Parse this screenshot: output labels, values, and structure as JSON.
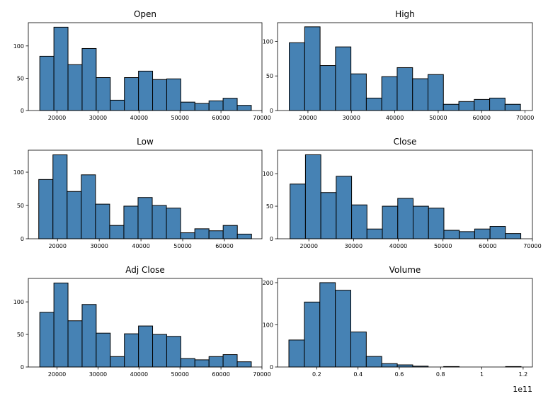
{
  "chart_data": [
    {
      "type": "histogram",
      "title": "Open",
      "color": "#4682b4",
      "bins": [
        15800,
        19240,
        22680,
        26120,
        29560,
        33000,
        36440,
        39880,
        43320,
        46760,
        50200,
        53640,
        57080,
        60520,
        63960,
        67400
      ],
      "counts": [
        84,
        129,
        71,
        96,
        51,
        16,
        51,
        61,
        48,
        49,
        13,
        11,
        15,
        19,
        8
      ],
      "xlim": [
        13000,
        70000
      ],
      "xticks": [
        20000,
        30000,
        40000,
        50000,
        60000,
        70000
      ],
      "ylim": [
        0,
        136
      ],
      "yticks": [
        0,
        50,
        100
      ]
    },
    {
      "type": "histogram",
      "title": "High",
      "color": "#4682b4",
      "bins": [
        15700,
        19250,
        22800,
        26350,
        29900,
        33450,
        37000,
        40550,
        44100,
        47650,
        51200,
        54750,
        58300,
        61850,
        65400,
        68950
      ],
      "counts": [
        98,
        121,
        65,
        92,
        53,
        18,
        49,
        62,
        46,
        52,
        9,
        13,
        16,
        18,
        9
      ],
      "xlim": [
        13000,
        71700
      ],
      "xticks": [
        20000,
        30000,
        40000,
        50000,
        60000,
        70000
      ],
      "ylim": [
        0,
        127
      ],
      "yticks": [
        0,
        50,
        100
      ]
    },
    {
      "type": "histogram",
      "title": "Low",
      "color": "#4682b4",
      "bins": [
        15500,
        18900,
        22300,
        25700,
        29100,
        32500,
        35900,
        39300,
        42700,
        46100,
        49500,
        52900,
        56300,
        59700,
        63100,
        66500
      ],
      "counts": [
        89,
        126,
        71,
        96,
        52,
        20,
        49,
        62,
        50,
        46,
        9,
        15,
        12,
        20,
        7
      ],
      "xlim": [
        13000,
        69000
      ],
      "xticks": [
        20000,
        30000,
        40000,
        50000,
        60000
      ],
      "ylim": [
        0,
        133
      ],
      "yticks": [
        0,
        50,
        100
      ]
    },
    {
      "type": "histogram",
      "title": "Close",
      "color": "#4682b4",
      "bins": [
        15800,
        19240,
        22680,
        26120,
        29560,
        33000,
        36440,
        39880,
        43320,
        46760,
        50200,
        53640,
        57080,
        60520,
        63960,
        67400
      ],
      "counts": [
        84,
        129,
        71,
        96,
        52,
        15,
        50,
        62,
        50,
        47,
        13,
        11,
        15,
        19,
        8
      ],
      "xlim": [
        13000,
        70000
      ],
      "xticks": [
        20000,
        30000,
        40000,
        50000,
        60000,
        70000
      ],
      "ylim": [
        0,
        136
      ],
      "yticks": [
        0,
        50,
        100
      ]
    },
    {
      "type": "histogram",
      "title": "Adj Close",
      "color": "#4682b4",
      "bins": [
        15800,
        19240,
        22680,
        26120,
        29560,
        33000,
        36440,
        39880,
        43320,
        46760,
        50200,
        53640,
        57080,
        60520,
        63960,
        67400
      ],
      "counts": [
        84,
        129,
        71,
        96,
        52,
        16,
        51,
        63,
        50,
        47,
        13,
        11,
        16,
        19,
        8
      ],
      "xlim": [
        13000,
        70000
      ],
      "xticks": [
        20000,
        30000,
        40000,
        50000,
        60000,
        70000
      ],
      "ylim": [
        0,
        136
      ],
      "yticks": [
        0,
        50,
        100
      ]
    },
    {
      "type": "histogram",
      "title": "Volume",
      "color": "#4682b4",
      "offset_text": "1e11",
      "bins": [
        0.065,
        0.14,
        0.215,
        0.29,
        0.365,
        0.44,
        0.515,
        0.59,
        0.665,
        0.74,
        0.815,
        0.89,
        0.965,
        1.04,
        1.115,
        1.19
      ],
      "counts": [
        64,
        154,
        200,
        182,
        83,
        25,
        8,
        5,
        2,
        0,
        1,
        0,
        0,
        0,
        1
      ],
      "xlim": [
        0.01,
        1.245
      ],
      "xticks": [
        0.2,
        0.4,
        0.6,
        0.8,
        1.0,
        1.2
      ],
      "ylim": [
        0,
        210
      ],
      "yticks": [
        0,
        100,
        200
      ]
    }
  ]
}
